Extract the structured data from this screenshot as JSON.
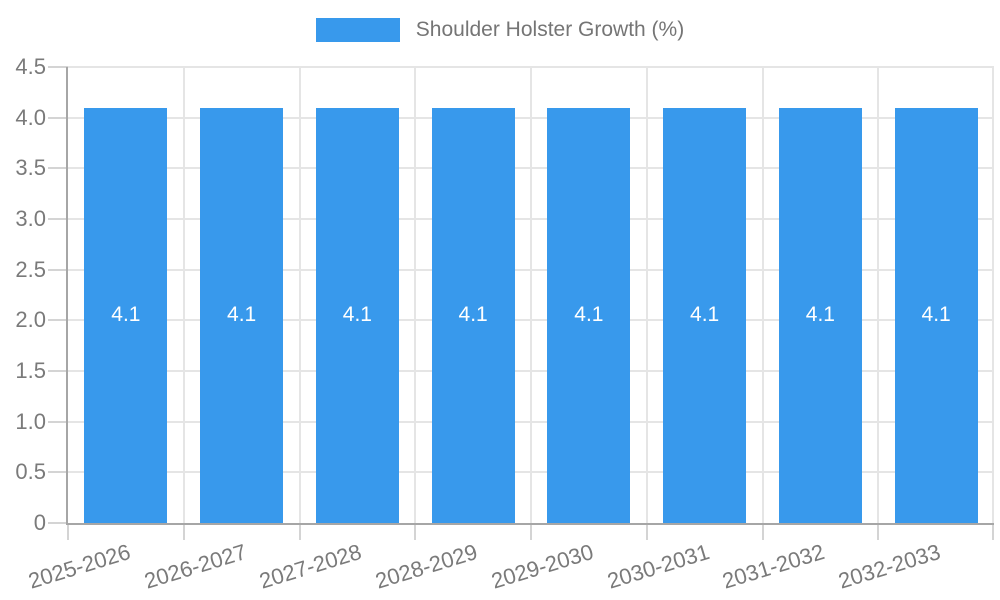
{
  "chart_data": {
    "type": "bar",
    "title": "",
    "categories": [
      "2025-2026",
      "2026-2027",
      "2027-2028",
      "2028-2029",
      "2029-2030",
      "2030-2031",
      "2031-2032",
      "2032-2033"
    ],
    "series": [
      {
        "name": "Shoulder Holster Growth (%)",
        "values": [
          4.1,
          4.1,
          4.1,
          4.1,
          4.1,
          4.1,
          4.1,
          4.1
        ]
      }
    ],
    "bar_value_labels": [
      "4.1",
      "4.1",
      "4.1",
      "4.1",
      "4.1",
      "4.1",
      "4.1",
      "4.1"
    ],
    "xlabel": "",
    "ylabel": "",
    "ylim": [
      0,
      4.5
    ],
    "ytick_step": 0.5,
    "ytick_labels": [
      "0",
      "0.5",
      "1.0",
      "1.5",
      "2.0",
      "2.5",
      "3.0",
      "3.5",
      "4.0",
      "4.5"
    ],
    "grid": true,
    "legend_position": "top",
    "x_label_rotation_deg": -17,
    "colors": {
      "bar": "#3899EC",
      "bar_label_text": "#FFFFFF",
      "grid_line": "#E5E5E5",
      "axis_line": "#A6A6A6",
      "tick_line": "#D4D4D4",
      "axis_text": "#7A7A7A",
      "legend_text": "#757575",
      "background": "#FFFFFF"
    }
  }
}
